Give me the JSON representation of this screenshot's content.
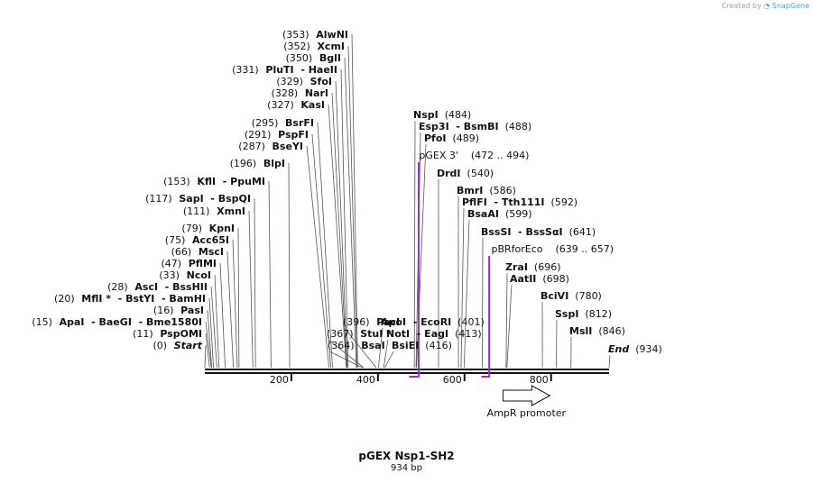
{
  "app": {
    "credit_prefix": "Created by",
    "credit_brand": "SnapGene"
  },
  "map": {
    "title": "pGEX Nsp1-SH2",
    "length_label": "934 bp",
    "total_bp": 934
  },
  "sites_left": [
    {
      "text": [
        "(353)",
        "AlwNI"
      ],
      "bp": 353
    },
    {
      "text": [
        "(352)",
        "XcmI"
      ],
      "bp": 352
    },
    {
      "text": [
        "(350)",
        "BglI"
      ],
      "bp": 350
    },
    {
      "text": [
        "(331)",
        "PluTI",
        "- HaeII"
      ],
      "bp": 331
    },
    {
      "text": [
        "(329)",
        "SfoI"
      ],
      "bp": 329
    },
    {
      "text": [
        "(328)",
        "NarI"
      ],
      "bp": 328
    },
    {
      "text": [
        "(327)",
        "KasI"
      ],
      "bp": 327
    },
    {
      "text": [
        "(295)",
        "BsrFI"
      ],
      "bp": 295
    },
    {
      "text": [
        "(291)",
        "PspFI"
      ],
      "bp": 291
    },
    {
      "text": [
        "(287)",
        "BseYI"
      ],
      "bp": 287
    },
    {
      "text": [
        "(196)",
        "BlpI"
      ],
      "bp": 196
    },
    {
      "text": [
        "(153)",
        "KflI",
        "- PpuMI"
      ],
      "bp": 153
    },
    {
      "text": [
        "(117)",
        "SapI",
        "- BspQI"
      ],
      "bp": 117
    },
    {
      "text": [
        "(111)",
        "XmnI"
      ],
      "bp": 111
    },
    {
      "text": [
        "(79)",
        "KpnI"
      ],
      "bp": 79
    },
    {
      "text": [
        "(75)",
        "Acc65I"
      ],
      "bp": 75
    },
    {
      "text": [
        "(66)",
        "MscI"
      ],
      "bp": 66
    },
    {
      "text": [
        "(47)",
        "PflMI"
      ],
      "bp": 47
    },
    {
      "text": [
        "(33)",
        "NcoI"
      ],
      "bp": 33
    },
    {
      "text": [
        "(28)",
        "AscI",
        "- BssHII"
      ],
      "bp": 28
    },
    {
      "text": [
        "(20)",
        "MflI *",
        "- BstYI",
        "- BamHI"
      ],
      "bp": 20
    },
    {
      "text": [
        "(16)",
        "PasI"
      ],
      "bp": 16
    },
    {
      "text": [
        "(15)",
        "ApaI",
        "- BaeGI",
        "- Bme1580I"
      ],
      "bp": 15
    },
    {
      "text": [
        "(11)",
        "PspOMI"
      ],
      "bp": 11
    },
    {
      "text": [
        "(0)",
        "Start"
      ],
      "bp": 0
    }
  ],
  "sites_middle": [
    {
      "text": [
        "(396)",
        "PacI"
      ],
      "bp": 396
    },
    {
      "text": [
        "(367)",
        "StuI *"
      ],
      "bp": 367
    },
    {
      "text": [
        "(364)",
        "BsaI"
      ],
      "bp": 364
    },
    {
      "text": [
        "ApoI",
        "- EcoRI",
        "(401)"
      ],
      "bp": 401
    },
    {
      "text": [
        "NotI",
        "- EagI",
        "(413)"
      ],
      "bp": 413
    },
    {
      "text": [
        "BsiEI",
        "(416)"
      ],
      "bp": 416
    }
  ],
  "sites_right": [
    {
      "text": [
        "NspI",
        "(484)"
      ],
      "bp": 484
    },
    {
      "text": [
        "Esp3I",
        "- BsmBI",
        "(488)"
      ],
      "bp": 488
    },
    {
      "text": [
        "PfoI",
        "(489)"
      ],
      "bp": 489
    },
    {
      "text": [
        "DrdI",
        "(540)"
      ],
      "bp": 540
    },
    {
      "text": [
        "BmrI",
        "(586)"
      ],
      "bp": 586
    },
    {
      "text": [
        "PflFI",
        "- Tth111I",
        "(592)"
      ],
      "bp": 592
    },
    {
      "text": [
        "BsaAI",
        "(599)"
      ],
      "bp": 599
    },
    {
      "text": [
        "BssSI",
        "- BssSαI",
        "(641)"
      ],
      "bp": 641
    },
    {
      "text": [
        "ZraI",
        "(696)"
      ],
      "bp": 696
    },
    {
      "text": [
        "AatII",
        "(698)"
      ],
      "bp": 698
    },
    {
      "text": [
        "BciVI",
        "(780)"
      ],
      "bp": 780
    },
    {
      "text": [
        "SspI",
        "(812)"
      ],
      "bp": 812
    },
    {
      "text": [
        "MslI",
        "(846)"
      ],
      "bp": 846
    },
    {
      "text": [
        "End",
        "(934)"
      ],
      "bp": 934
    }
  ],
  "primers": [
    {
      "name": "pGEX 3'",
      "range": "(472 .. 494)",
      "start": 472,
      "end": 494
    },
    {
      "name": "pBRforEco",
      "range": "(639 .. 657)",
      "start": 639,
      "end": 657
    }
  ],
  "features": [
    {
      "name": "AmpR promoter",
      "start": 691,
      "end": 795,
      "direction": "forward"
    }
  ],
  "ticks": [
    "200",
    "400",
    "600",
    "800"
  ],
  "colors": {
    "primer": "#9b30c8",
    "line": "#111111",
    "leader": "#555555"
  }
}
